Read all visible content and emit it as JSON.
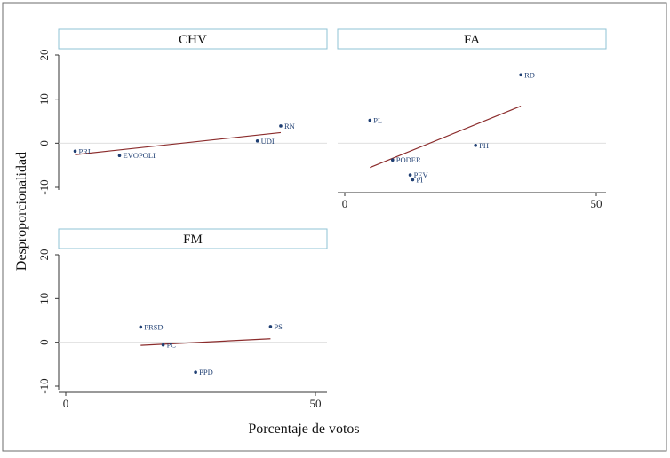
{
  "chart_data": {
    "type": "scatter",
    "ylabel": "Desproporcionalidad",
    "xlabel": "Porcentaje de votos",
    "colors": {
      "point": "#1f3f73",
      "fit_line": "#8b2c2c",
      "header_border": "#8fc3d6",
      "axis": "#333333"
    },
    "panels": [
      {
        "title": "CHV",
        "show_x_axis": false,
        "show_y_axis": true,
        "xlim": [
          0,
          52
        ],
        "ylim": [
          -12,
          22
        ],
        "xticks": [],
        "yticks": [
          -10,
          0,
          10,
          20
        ],
        "points": [
          {
            "label": "PRI",
            "x": 2,
            "y": -1.8
          },
          {
            "label": "EVOPOLI",
            "x": 11.5,
            "y": -2.8
          },
          {
            "label": "UDI",
            "x": 41,
            "y": 0.5
          },
          {
            "label": "RN",
            "x": 46,
            "y": 3.9
          }
        ],
        "fit_line": {
          "x": [
            2,
            46
          ],
          "y": [
            -2.6,
            2.4
          ]
        }
      },
      {
        "title": "FA",
        "show_x_axis": true,
        "show_y_axis": false,
        "xlim": [
          -2,
          52
        ],
        "ylim": [
          -12,
          22
        ],
        "xticks": [
          0,
          50
        ],
        "yticks": [
          -10,
          0,
          10,
          20
        ],
        "points": [
          {
            "label": "RD",
            "x": 35,
            "y": 15.5
          },
          {
            "label": "PL",
            "x": 5,
            "y": 5.2
          },
          {
            "label": "PH",
            "x": 26,
            "y": -0.5
          },
          {
            "label": "PODER",
            "x": 9.5,
            "y": -3.8
          },
          {
            "label": "PEV",
            "x": 13,
            "y": -7.2
          },
          {
            "label": "PI",
            "x": 13.5,
            "y": -8.3
          }
        ],
        "fit_line": {
          "x": [
            5,
            35
          ],
          "y": [
            -5.5,
            8.4
          ]
        }
      },
      {
        "title": "FM",
        "show_x_axis": true,
        "show_y_axis": true,
        "xlim": [
          -2,
          52
        ],
        "ylim": [
          -12,
          22
        ],
        "xticks": [
          0,
          50
        ],
        "yticks": [
          -10,
          0,
          10,
          20
        ],
        "points": [
          {
            "label": "PRSD",
            "x": 15,
            "y": 3.5
          },
          {
            "label": "PS",
            "x": 41,
            "y": 3.6
          },
          {
            "label": "PC",
            "x": 19.5,
            "y": -0.6
          },
          {
            "label": "PPD",
            "x": 26,
            "y": -6.8
          }
        ],
        "fit_line": {
          "x": [
            15,
            41
          ],
          "y": [
            -0.7,
            0.8
          ]
        }
      }
    ]
  }
}
